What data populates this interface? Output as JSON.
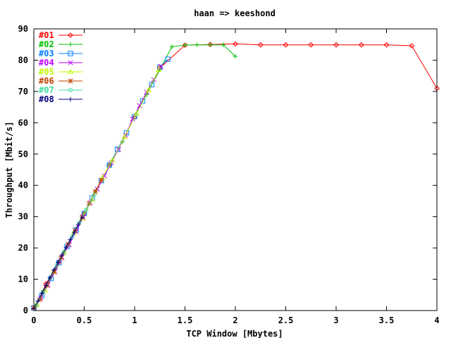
{
  "chart_data": {
    "type": "line",
    "title": "haan => keeshond",
    "xlabel": "TCP Window [Mbytes]",
    "ylabel": "Throughput [Mbit/s]",
    "xlim": [
      0,
      4
    ],
    "ylim": [
      0,
      90
    ],
    "xticks": [
      0,
      0.5,
      1,
      1.5,
      2,
      2.5,
      3,
      3.5,
      4
    ],
    "xtick_labels": [
      "0",
      "0.5",
      "1",
      "1.5",
      "2",
      "2.5",
      "3",
      "3.5",
      "4"
    ],
    "yticks": [
      0,
      10,
      20,
      30,
      40,
      50,
      60,
      70,
      80,
      90
    ],
    "ytick_labels": [
      "0",
      "10",
      "20",
      "30",
      "40",
      "50",
      "60",
      "70",
      "80",
      "90"
    ],
    "legend_position": "top-left",
    "series": [
      {
        "name": "#01",
        "color": "#ff0000",
        "marker": "diamond",
        "x": [
          0.02,
          0.12,
          0.25,
          0.5,
          0.75,
          1.0,
          1.25,
          1.5,
          1.75,
          2.0,
          2.25,
          2.5,
          2.75,
          3.0,
          3.25,
          3.5,
          3.75,
          4.0
        ],
        "y": [
          1.5,
          8.5,
          15.5,
          31,
          46.5,
          61.8,
          77.5,
          84.8,
          85.0,
          85.2,
          84.9,
          84.9,
          84.9,
          84.9,
          84.9,
          84.9,
          84.6,
          71.0
        ]
      },
      {
        "name": "#02",
        "color": "#00c000",
        "marker": "plus",
        "x": [
          0.02,
          0.1,
          0.22,
          0.35,
          0.5,
          0.62,
          0.75,
          0.88,
          1.0,
          1.12,
          1.25,
          1.37,
          1.5,
          1.62,
          1.75,
          1.88,
          2.0
        ],
        "y": [
          1.5,
          6.5,
          13.5,
          21.5,
          31,
          38.5,
          46.5,
          54,
          62,
          69,
          77,
          84.3,
          84.8,
          84.9,
          84.9,
          84.9,
          81.2
        ]
      },
      {
        "name": "#03",
        "color": "#0080ff",
        "marker": "square",
        "x": [
          0.0,
          0.08,
          0.17,
          0.25,
          0.33,
          0.42,
          0.5,
          0.58,
          0.67,
          0.75,
          0.83,
          0.92,
          1.0,
          1.08,
          1.17,
          1.25,
          1.33
        ],
        "y": [
          0.8,
          4.8,
          10.2,
          15.3,
          20.5,
          25.8,
          31.0,
          36.0,
          41.5,
          46.5,
          51.5,
          56.8,
          62.0,
          67.0,
          72.2,
          77.7,
          80.3
        ]
      },
      {
        "name": "#04",
        "color": "#c000ff",
        "marker": "cross",
        "x": [
          0.0,
          0.07,
          0.14,
          0.21,
          0.28,
          0.35,
          0.42,
          0.49,
          0.56,
          0.63,
          0.7,
          0.77,
          0.84,
          0.91,
          0.98,
          1.05,
          1.12,
          1.19,
          1.26
        ],
        "y": [
          0.8,
          4.0,
          8.2,
          12.5,
          17.0,
          21.0,
          25.2,
          29.8,
          34.5,
          38.8,
          43.0,
          47.2,
          51.5,
          56.0,
          61.2,
          65.5,
          69.8,
          73.8,
          78.0
        ]
      },
      {
        "name": "#05",
        "color": "#c0ff00",
        "marker": "triangle",
        "x": [
          0.03,
          0.11,
          0.2,
          0.3,
          0.4,
          0.48,
          0.58,
          0.68,
          0.78,
          0.9,
          1.02,
          1.14,
          1.24
        ],
        "y": [
          2.0,
          6.5,
          12.5,
          18.5,
          25.0,
          29.5,
          35.5,
          42.5,
          48.0,
          55.5,
          63.0,
          70.5,
          77.0
        ]
      },
      {
        "name": "#06",
        "color": "#c04000",
        "marker": "star",
        "x": [
          0.0,
          0.06,
          0.13,
          0.2,
          0.27,
          0.34,
          0.41,
          0.48,
          0.55,
          0.61,
          0.67
        ],
        "y": [
          0.8,
          3.5,
          8.0,
          12.3,
          16.8,
          21.2,
          25.6,
          29.9,
          34.2,
          38.0,
          41.6
        ]
      },
      {
        "name": "#07",
        "color": "#40e0a0",
        "marker": "circle",
        "x": [
          0.02,
          0.09,
          0.16,
          0.23,
          0.3,
          0.38,
          0.45,
          0.52,
          0.6
        ],
        "y": [
          1.6,
          5.8,
          10.3,
          14.6,
          18.8,
          23.6,
          28.0,
          32.2,
          37.0
        ]
      },
      {
        "name": "#08",
        "color": "#000080",
        "marker": "plus",
        "x": [
          0.0,
          0.04,
          0.08,
          0.12,
          0.16,
          0.2,
          0.24,
          0.28,
          0.32,
          0.36,
          0.4,
          0.44,
          0.48
        ],
        "y": [
          0.6,
          3.0,
          5.5,
          8.0,
          10.5,
          13.0,
          15.4,
          17.8,
          20.2,
          22.6,
          25.0,
          27.4,
          29.8
        ]
      }
    ]
  }
}
